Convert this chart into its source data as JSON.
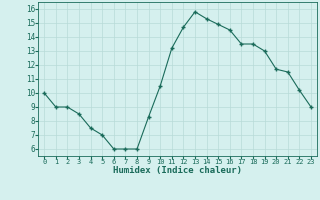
{
  "x": [
    0,
    1,
    2,
    3,
    4,
    5,
    6,
    7,
    8,
    9,
    10,
    11,
    12,
    13,
    14,
    15,
    16,
    17,
    18,
    19,
    20,
    21,
    22,
    23
  ],
  "y": [
    10.0,
    9.0,
    9.0,
    8.5,
    7.5,
    7.0,
    6.0,
    6.0,
    6.0,
    8.3,
    10.5,
    13.2,
    14.7,
    15.8,
    15.3,
    14.9,
    14.5,
    13.5,
    13.5,
    13.0,
    11.7,
    11.5,
    10.2,
    9.0
  ],
  "xlabel": "Humidex (Indice chaleur)",
  "xlim": [
    -0.5,
    23.5
  ],
  "ylim": [
    5.5,
    16.5
  ],
  "yticks": [
    6,
    7,
    8,
    9,
    10,
    11,
    12,
    13,
    14,
    15,
    16
  ],
  "xticks": [
    0,
    1,
    2,
    3,
    4,
    5,
    6,
    7,
    8,
    9,
    10,
    11,
    12,
    13,
    14,
    15,
    16,
    17,
    18,
    19,
    20,
    21,
    22,
    23
  ],
  "xtick_labels": [
    "0",
    "1",
    "2",
    "3",
    "4",
    "5",
    "6",
    "7",
    "8",
    "9",
    "10",
    "11",
    "12",
    "13",
    "14",
    "15",
    "16",
    "17",
    "18",
    "19",
    "20",
    "21",
    "22",
    "23"
  ],
  "line_color": "#1a6b5a",
  "marker": "+",
  "marker_size": 3.5,
  "marker_lw": 1.0,
  "bg_color": "#d5f0ee",
  "grid_color": "#b8dbd8",
  "font_family": "monospace"
}
